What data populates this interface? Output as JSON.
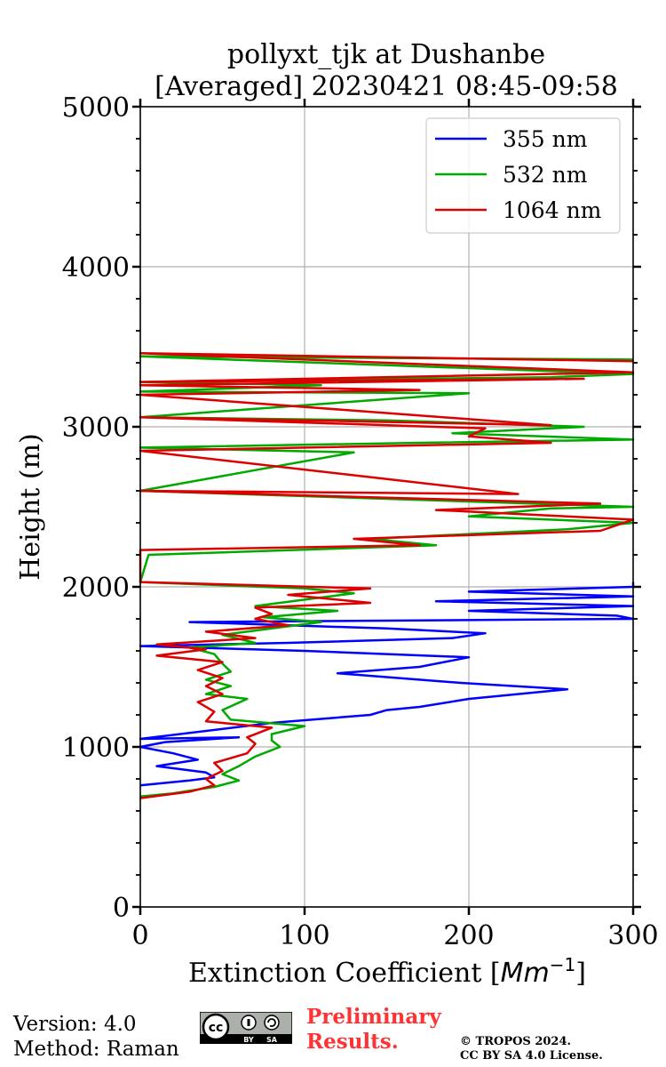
{
  "chart_data": {
    "type": "line",
    "title_line1": "pollyxt_tjk at Dushanbe",
    "title_line2": "[Averaged] 20230421 08:45-09:58",
    "xlabel": "Extinction Coefficient [",
    "xlabel_unit": "Mm",
    "xlabel_exp": "−1",
    "xlabel_close": "]",
    "ylabel": "Height (m)",
    "xlim": [
      0,
      300
    ],
    "ylim": [
      0,
      5000
    ],
    "x_ticks": [
      0,
      100,
      200,
      300
    ],
    "x_tick_labels": [
      "0",
      "100",
      "200",
      "300"
    ],
    "y_ticks": [
      0,
      1000,
      2000,
      3000,
      4000,
      5000
    ],
    "y_tick_labels": [
      "0",
      "1000",
      "2000",
      "3000",
      "4000",
      "5000"
    ],
    "grid": true,
    "legend_position": "top-right",
    "series": [
      {
        "name": "355 nm",
        "color": "#0000ff",
        "points": [
          [
            0,
            760
          ],
          [
            30,
            790
          ],
          [
            45,
            810
          ],
          [
            40,
            840
          ],
          [
            10,
            880
          ],
          [
            35,
            920
          ],
          [
            20,
            960
          ],
          [
            0,
            1000
          ],
          [
            15,
            1030
          ],
          [
            60,
            1060
          ],
          [
            0,
            1050
          ],
          [
            80,
            1150
          ],
          [
            140,
            1200
          ],
          [
            150,
            1230
          ],
          [
            170,
            1250
          ],
          [
            200,
            1300
          ],
          [
            260,
            1360
          ],
          [
            195,
            1400
          ],
          [
            120,
            1460
          ],
          [
            170,
            1500
          ],
          [
            200,
            1560
          ],
          [
            100,
            1600
          ],
          [
            0,
            1630
          ],
          [
            90,
            1650
          ],
          [
            190,
            1680
          ],
          [
            210,
            1710
          ],
          [
            150,
            1740
          ],
          [
            30,
            1780
          ],
          [
            300,
            1800
          ],
          [
            290,
            1820
          ],
          [
            200,
            1850
          ],
          [
            300,
            1880
          ],
          [
            180,
            1910
          ],
          [
            300,
            1940
          ],
          [
            200,
            1970
          ],
          [
            300,
            2000
          ],
          [
            300,
            2030
          ]
        ]
      },
      {
        "name": "532 nm",
        "color": "#00aa00",
        "points": [
          [
            0,
            690
          ],
          [
            20,
            710
          ],
          [
            45,
            750
          ],
          [
            60,
            790
          ],
          [
            50,
            830
          ],
          [
            60,
            880
          ],
          [
            70,
            940
          ],
          [
            85,
            1000
          ],
          [
            80,
            1040
          ],
          [
            80,
            1080
          ],
          [
            100,
            1130
          ],
          [
            55,
            1170
          ],
          [
            50,
            1230
          ],
          [
            65,
            1300
          ],
          [
            40,
            1330
          ],
          [
            55,
            1380
          ],
          [
            40,
            1420
          ],
          [
            55,
            1470
          ],
          [
            50,
            1520
          ],
          [
            45,
            1580
          ],
          [
            30,
            1620
          ],
          [
            70,
            1650
          ],
          [
            50,
            1700
          ],
          [
            80,
            1740
          ],
          [
            110,
            1780
          ],
          [
            75,
            1810
          ],
          [
            120,
            1850
          ],
          [
            70,
            1880
          ],
          [
            100,
            1920
          ],
          [
            130,
            1960
          ],
          [
            100,
            1990
          ],
          [
            0,
            2030
          ],
          [
            5,
            2200
          ],
          [
            180,
            2260
          ],
          [
            140,
            2300
          ],
          [
            260,
            2360
          ],
          [
            300,
            2400
          ],
          [
            200,
            2440
          ],
          [
            250,
            2490
          ],
          [
            300,
            2500
          ],
          [
            0,
            2600
          ],
          [
            130,
            2840
          ],
          [
            0,
            2870
          ],
          [
            170,
            2900
          ],
          [
            300,
            2920
          ],
          [
            190,
            2960
          ],
          [
            270,
            3000
          ],
          [
            150,
            3040
          ],
          [
            0,
            3060
          ],
          [
            200,
            3210
          ],
          [
            0,
            3220
          ],
          [
            110,
            3260
          ],
          [
            0,
            3280
          ],
          [
            250,
            3310
          ],
          [
            300,
            3330
          ],
          [
            0,
            3440
          ],
          [
            300,
            3420
          ]
        ]
      },
      {
        "name": "1064 nm",
        "color": "#dd0000",
        "points": [
          [
            0,
            680
          ],
          [
            30,
            720
          ],
          [
            45,
            760
          ],
          [
            40,
            800
          ],
          [
            50,
            850
          ],
          [
            45,
            900
          ],
          [
            65,
            960
          ],
          [
            70,
            1020
          ],
          [
            65,
            1060
          ],
          [
            80,
            1120
          ],
          [
            40,
            1160
          ],
          [
            45,
            1220
          ],
          [
            35,
            1280
          ],
          [
            50,
            1330
          ],
          [
            40,
            1380
          ],
          [
            50,
            1430
          ],
          [
            35,
            1480
          ],
          [
            50,
            1530
          ],
          [
            10,
            1570
          ],
          [
            40,
            1610
          ],
          [
            10,
            1640
          ],
          [
            70,
            1680
          ],
          [
            40,
            1720
          ],
          [
            90,
            1760
          ],
          [
            70,
            1800
          ],
          [
            80,
            1830
          ],
          [
            70,
            1870
          ],
          [
            140,
            1900
          ],
          [
            90,
            1950
          ],
          [
            140,
            1990
          ],
          [
            0,
            2030
          ],
          [
            0,
            2230
          ],
          [
            170,
            2260
          ],
          [
            130,
            2300
          ],
          [
            280,
            2350
          ],
          [
            300,
            2420
          ],
          [
            180,
            2480
          ],
          [
            280,
            2520
          ],
          [
            0,
            2600
          ],
          [
            230,
            2580
          ],
          [
            0,
            2850
          ],
          [
            250,
            2900
          ],
          [
            200,
            2940
          ],
          [
            210,
            2990
          ],
          [
            0,
            3060
          ],
          [
            250,
            3010
          ],
          [
            0,
            3200
          ],
          [
            170,
            3230
          ],
          [
            0,
            3260
          ],
          [
            270,
            3300
          ],
          [
            0,
            3280
          ],
          [
            300,
            3340
          ],
          [
            0,
            3460
          ],
          [
            300,
            3410
          ]
        ]
      }
    ]
  },
  "footer": {
    "version": "Version: 4.0",
    "method": "Method: Raman",
    "preliminary_line1": "Preliminary",
    "preliminary_line2": "Results.",
    "copyright_line1": "© TROPOS 2024.",
    "copyright_line2": "CC BY SA 4.0 License.",
    "cc_badge_text": "cc",
    "cc_badge_by": "BY",
    "cc_badge_sa": "SA"
  }
}
